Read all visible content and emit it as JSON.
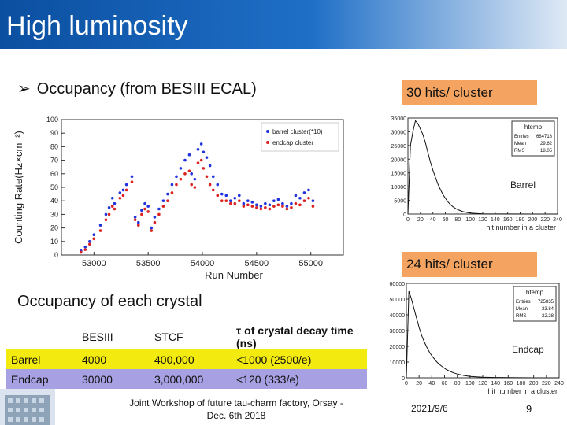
{
  "slide": {
    "title": "High luminosity",
    "bullet": "Occupancy (from BESIII ECAL)",
    "occupancy_title": "Occupancy of each crystal",
    "footer_center_line1": "Joint Workshop of future tau-charm factory, Orsay -",
    "footer_center_line2": "Dec. 6th 2018",
    "date": "2021/9/6",
    "page": "9",
    "label_30": "30 hits/ cluster",
    "label_24": "24 hits/ cluster"
  },
  "table": {
    "header": [
      "",
      "BESIII",
      "STCF",
      "τ of crystal decay time (ns)"
    ],
    "rows": [
      [
        "Barrel",
        "4000",
        "400,000",
        "<1000 (2500/e)"
      ],
      [
        "Endcap",
        "30000",
        "3,000,000",
        "<120 (333/e)"
      ]
    ]
  },
  "colors": {
    "title_bg": "#0b4fa0",
    "hits_label_bg": "#f4a460",
    "barrel_row": "#f3ea10",
    "endcap_row": "#a7a1e3",
    "series_blue": "#2233dd",
    "series_red": "#dd2222"
  },
  "chart_data": [
    {
      "type": "scatter",
      "ylabel": "Counting Rate(Hz×cm⁻²)",
      "xlabel": "Run Number",
      "xlim": [
        52700,
        55300
      ],
      "ylim": [
        0,
        100
      ],
      "xticks": [
        "53000",
        "53500",
        "54000",
        "54500",
        "55000"
      ],
      "yticks": [
        "0",
        "10",
        "20",
        "30",
        "40",
        "50",
        "60",
        "70",
        "80",
        "90",
        "100"
      ],
      "legend": [
        "barrel cluster(*10)",
        "endcap cluster"
      ],
      "series": [
        {
          "name": "barrel cluster(*10)",
          "x": [
            52880,
            52920,
            52960,
            53000,
            53060,
            53110,
            53140,
            53170,
            53190,
            53240,
            53270,
            53300,
            53350,
            53380,
            53410,
            53440,
            53470,
            53500,
            53530,
            53560,
            53600,
            53640,
            53680,
            53720,
            53760,
            53800,
            53840,
            53880,
            53900,
            53930,
            53960,
            53990,
            54010,
            54040,
            54070,
            54100,
            54140,
            54180,
            54220,
            54260,
            54300,
            54340,
            54380,
            54420,
            54460,
            54500,
            54540,
            54580,
            54620,
            54660,
            54700,
            54740,
            54780,
            54820,
            54860,
            54900,
            54940,
            54980,
            55020
          ],
          "y": [
            3,
            6,
            10,
            15,
            22,
            30,
            35,
            42,
            38,
            46,
            48,
            52,
            58,
            28,
            24,
            33,
            38,
            36,
            20,
            28,
            34,
            40,
            45,
            52,
            58,
            64,
            70,
            74,
            60,
            56,
            78,
            82,
            76,
            72,
            66,
            58,
            52,
            45,
            44,
            40,
            42,
            44,
            38,
            40,
            39,
            37,
            36,
            38,
            37,
            40,
            41,
            38,
            36,
            38,
            44,
            42,
            46,
            48,
            40
          ]
        },
        {
          "name": "endcap cluster",
          "x": [
            52880,
            52920,
            52960,
            53000,
            53060,
            53110,
            53140,
            53170,
            53190,
            53240,
            53270,
            53300,
            53350,
            53380,
            53410,
            53440,
            53470,
            53500,
            53530,
            53560,
            53600,
            53640,
            53680,
            53720,
            53760,
            53800,
            53840,
            53880,
            53900,
            53930,
            53960,
            53990,
            54010,
            54040,
            54070,
            54100,
            54140,
            54180,
            54220,
            54260,
            54300,
            54340,
            54380,
            54420,
            54460,
            54500,
            54540,
            54580,
            54620,
            54660,
            54700,
            54740,
            54780,
            54820,
            54860,
            54900,
            54940,
            54980,
            55020
          ],
          "y": [
            2,
            4,
            8,
            12,
            18,
            26,
            30,
            36,
            34,
            42,
            44,
            48,
            54,
            26,
            22,
            30,
            34,
            32,
            18,
            24,
            30,
            36,
            40,
            46,
            52,
            56,
            60,
            62,
            52,
            50,
            68,
            70,
            64,
            58,
            52,
            48,
            44,
            40,
            40,
            38,
            38,
            40,
            36,
            37,
            36,
            35,
            34,
            35,
            34,
            36,
            37,
            36,
            34,
            35,
            38,
            37,
            40,
            42,
            36
          ]
        }
      ]
    },
    {
      "type": "line",
      "legend_title": "htemp",
      "stats": [
        [
          "Entries",
          "684718"
        ],
        [
          "Mean",
          "29.62"
        ],
        [
          "RMS",
          "18.05"
        ]
      ],
      "annotation": "Barrel",
      "xlabel": "hit number in a cluster",
      "xlim": [
        0,
        240
      ],
      "ylim": [
        0,
        35000
      ],
      "xticks": [
        "0",
        "20",
        "40",
        "60",
        "80",
        "100",
        "120",
        "140",
        "160",
        "180",
        "200",
        "220",
        "240"
      ],
      "yticks": [
        "0",
        "5000",
        "10000",
        "15000",
        "20000",
        "25000",
        "30000",
        "35000"
      ],
      "x": [
        0,
        4,
        8,
        12,
        16,
        20,
        24,
        28,
        32,
        36,
        40,
        44,
        48,
        52,
        56,
        60,
        64,
        68,
        72,
        76,
        80,
        88,
        96,
        104,
        112,
        120,
        140,
        160,
        200,
        240
      ],
      "y": [
        0,
        25000,
        30000,
        34000,
        33000,
        31000,
        29000,
        26000,
        22500,
        19000,
        16000,
        13500,
        11000,
        9000,
        7200,
        5800,
        4500,
        3500,
        2700,
        2100,
        1600,
        900,
        500,
        300,
        180,
        100,
        40,
        15,
        0,
        0
      ]
    },
    {
      "type": "line",
      "legend_title": "htemp",
      "stats": [
        [
          "Entries",
          "725835"
        ],
        [
          "Mean",
          "23.84"
        ],
        [
          "RMS",
          "22.28"
        ]
      ],
      "annotation": "Endcap",
      "xlabel": "hit number in a cluster",
      "xlim": [
        0,
        240
      ],
      "ylim": [
        0,
        60000
      ],
      "xticks": [
        "0",
        "20",
        "40",
        "60",
        "80",
        "100",
        "120",
        "140",
        "160",
        "180",
        "200",
        "220",
        "240"
      ],
      "yticks": [
        "0",
        "10000",
        "20000",
        "30000",
        "40000",
        "50000",
        "60000"
      ],
      "x": [
        0,
        4,
        8,
        12,
        16,
        20,
        24,
        28,
        32,
        36,
        40,
        44,
        48,
        52,
        56,
        60,
        64,
        68,
        72,
        76,
        80,
        90,
        100,
        120,
        140,
        160,
        200,
        240
      ],
      "y": [
        0,
        55000,
        50000,
        44000,
        38000,
        32000,
        27000,
        23000,
        19500,
        16500,
        14000,
        12000,
        10000,
        8500,
        7200,
        6000,
        5000,
        4200,
        3500,
        2900,
        2400,
        1500,
        900,
        400,
        200,
        100,
        20,
        0
      ]
    }
  ]
}
